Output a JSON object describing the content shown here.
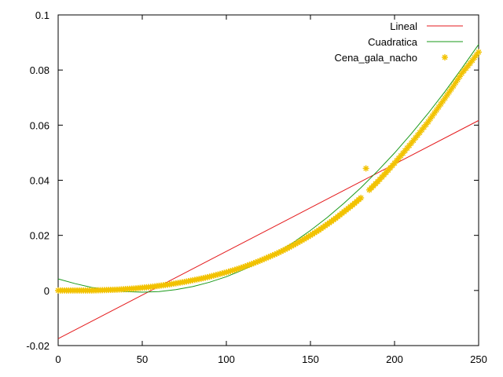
{
  "chart_data": {
    "type": "scatter",
    "xlim": [
      0,
      250
    ],
    "ylim": [
      -0.02,
      0.1
    ],
    "x_ticks": [
      "0",
      "50",
      "100",
      "150",
      "200",
      "250"
    ],
    "y_ticks": [
      "-0.02",
      "0",
      "0.02",
      "0.04",
      "0.06",
      "0.08",
      "0.1"
    ],
    "x_tick_values": [
      0,
      50,
      100,
      150,
      200,
      250
    ],
    "y_tick_values": [
      -0.02,
      0,
      0.02,
      0.04,
      0.06,
      0.08,
      0.1
    ],
    "grid": false,
    "legend_position": "top-right",
    "series": [
      {
        "name": "Lineal",
        "kind": "line",
        "color": "#e41a1c",
        "x": [
          0,
          250
        ],
        "y": [
          -0.0175,
          0.0617
        ]
      },
      {
        "name": "Cuadratica",
        "kind": "line",
        "color": "#1a9a1a",
        "x": [
          0,
          10,
          20,
          30,
          40,
          50,
          60,
          70,
          80,
          90,
          100,
          110,
          120,
          130,
          140,
          150,
          160,
          170,
          180,
          190,
          200,
          210,
          220,
          230,
          240,
          250
        ],
        "y": [
          0.0042,
          0.0025,
          0.0011,
          0.0002,
          -0.0004,
          -0.0006,
          -0.0004,
          0.0003,
          0.0014,
          0.003,
          0.005,
          0.0075,
          0.0104,
          0.0137,
          0.0175,
          0.0218,
          0.0265,
          0.0317,
          0.0373,
          0.0434,
          0.0499,
          0.0569,
          0.0643,
          0.0722,
          0.0806,
          0.0893
        ]
      },
      {
        "name": "Cena_gala_nacho",
        "kind": "points",
        "color": "#f2c200",
        "x": [
          0,
          5,
          10,
          15,
          20,
          25,
          30,
          35,
          40,
          45,
          50,
          55,
          60,
          65,
          70,
          75,
          80,
          85,
          90,
          95,
          100,
          105,
          110,
          115,
          120,
          125,
          130,
          135,
          140,
          145,
          150,
          155,
          160,
          165,
          170,
          175,
          180,
          183,
          185,
          190,
          195,
          200,
          205,
          210,
          215,
          220,
          225,
          230,
          235,
          240,
          245,
          250
        ],
        "y": [
          0.0,
          0.0,
          0.0,
          0.0,
          0.0,
          0.0001,
          0.0002,
          0.0003,
          0.0005,
          0.0007,
          0.001,
          0.0013,
          0.0017,
          0.0021,
          0.0026,
          0.0031,
          0.0037,
          0.0043,
          0.005,
          0.0058,
          0.0066,
          0.0075,
          0.0085,
          0.0096,
          0.0108,
          0.0121,
          0.0134,
          0.0149,
          0.0165,
          0.0182,
          0.02,
          0.0219,
          0.024,
          0.0262,
          0.0286,
          0.031,
          0.0336,
          0.0443,
          0.0365,
          0.0395,
          0.0428,
          0.0462,
          0.0498,
          0.0535,
          0.0573,
          0.0612,
          0.0655,
          0.0698,
          0.0742,
          0.0788,
          0.0825,
          0.0865
        ]
      }
    ]
  }
}
